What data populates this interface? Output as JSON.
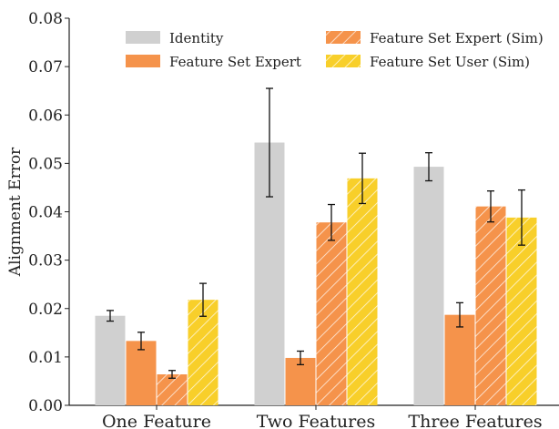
{
  "chart_data": {
    "type": "bar",
    "title": "",
    "xlabel": "",
    "ylabel": "Alignment Error",
    "ylim": [
      0,
      0.08
    ],
    "yticks": [
      "0.00",
      "0.01",
      "0.02",
      "0.03",
      "0.04",
      "0.05",
      "0.06",
      "0.07",
      "0.08"
    ],
    "categories": [
      "One Feature",
      "Two Features",
      "Three Features"
    ],
    "grid": false,
    "legend_position": "top",
    "series": [
      {
        "name": "Identity",
        "color": "#d0d0d0",
        "hatch": false,
        "values": [
          0.0185,
          0.0543,
          0.0493
        ],
        "errors": [
          0.0011,
          0.0112,
          0.0029
        ]
      },
      {
        "name": "Feature Set Expert",
        "color": "#f5934b",
        "hatch": false,
        "values": [
          0.0133,
          0.0098,
          0.0187
        ],
        "errors": [
          0.0018,
          0.0014,
          0.0025
        ]
      },
      {
        "name": "Feature Set Expert (Sim)",
        "color": "#f5934b",
        "hatch": true,
        "values": [
          0.0064,
          0.0378,
          0.0411
        ],
        "errors": [
          0.0008,
          0.0037,
          0.0032
        ]
      },
      {
        "name": "Feature Set User (Sim)",
        "color": "#f8cf2a",
        "hatch": true,
        "values": [
          0.0218,
          0.0469,
          0.0388
        ],
        "errors": [
          0.0034,
          0.0052,
          0.0057
        ]
      }
    ]
  }
}
